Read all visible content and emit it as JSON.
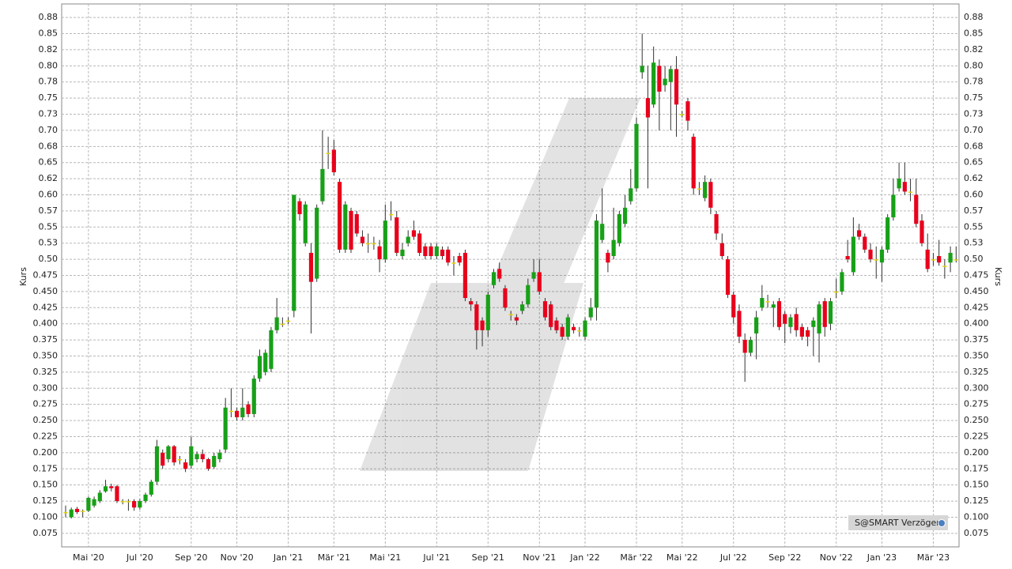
{
  "chart_data": {
    "type": "candlestick",
    "y_label": "Kurs",
    "y2_label": "Kurs",
    "up_color": "#18a018",
    "down_color": "#e8001c",
    "flat_color": "#e8d400",
    "wick_color": "#333333",
    "grid": true,
    "mirror_axis": true,
    "ylim": [
      0.054,
      0.896
    ],
    "yticks": [
      0.075,
      {
        "value": 0.1,
        "label": "0.100"
      },
      0.125,
      {
        "value": 0.15,
        "label": "0.150"
      },
      0.175,
      {
        "value": 0.2,
        "label": "0.200"
      },
      0.225,
      {
        "value": 0.25,
        "label": "0.250"
      },
      0.275,
      {
        "value": 0.3,
        "label": "0.300"
      },
      0.325,
      {
        "value": 0.35,
        "label": "0.350"
      },
      0.375,
      {
        "value": 0.4,
        "label": "0.400"
      },
      0.425,
      {
        "value": 0.45,
        "label": "0.450"
      },
      0.475,
      {
        "value": 0.5,
        "label": "0.50"
      },
      {
        "value": 0.525,
        "label": "0.53"
      },
      0.55,
      {
        "value": 0.575,
        "label": "0.57"
      },
      {
        "value": 0.6,
        "label": "0.60"
      },
      {
        "value": 0.625,
        "label": "0.62"
      },
      0.65,
      {
        "value": 0.675,
        "label": "0.68"
      },
      {
        "value": 0.7,
        "label": "0.70"
      },
      {
        "value": 0.725,
        "label": "0.73"
      },
      0.75,
      {
        "value": 0.775,
        "label": "0.78"
      },
      {
        "value": 0.8,
        "label": "0.80"
      },
      {
        "value": 0.825,
        "label": "0.82"
      },
      0.85,
      {
        "value": 0.875,
        "label": "0.88"
      }
    ],
    "categories": [
      null,
      null,
      null,
      null,
      "Mai '20",
      null,
      null,
      null,
      null,
      null,
      null,
      null,
      null,
      "Jul '20",
      null,
      null,
      null,
      null,
      null,
      null,
      null,
      null,
      "Sep '20",
      null,
      null,
      null,
      null,
      null,
      null,
      null,
      "Nov '20",
      null,
      null,
      null,
      null,
      null,
      null,
      null,
      null,
      "Jan '21",
      null,
      null,
      null,
      null,
      null,
      null,
      null,
      "Mär '21",
      null,
      null,
      null,
      null,
      null,
      null,
      null,
      null,
      "Mai '21",
      null,
      null,
      null,
      null,
      null,
      null,
      null,
      null,
      "Jul '21",
      null,
      null,
      null,
      null,
      null,
      null,
      null,
      null,
      "Sep '21",
      null,
      null,
      null,
      null,
      null,
      null,
      null,
      null,
      "Nov '21",
      null,
      null,
      null,
      null,
      null,
      null,
      null,
      "Jan '22",
      null,
      null,
      null,
      null,
      null,
      null,
      null,
      null,
      "Mär '22",
      null,
      null,
      null,
      null,
      null,
      null,
      null,
      "Mai '22",
      null,
      null,
      null,
      null,
      null,
      null,
      null,
      null,
      "Jul '22",
      null,
      null,
      null,
      null,
      null,
      null,
      null,
      null,
      "Sep '22",
      null,
      null,
      null,
      null,
      null,
      null,
      null,
      null,
      "Nov '22",
      null,
      null,
      null,
      null,
      null,
      null,
      null,
      "Jan '23",
      null,
      null,
      null,
      null,
      null,
      null,
      null,
      null,
      "Mär '23",
      null,
      null,
      null,
      null
    ],
    "open": [
      0.108,
      0.1,
      0.113,
      0.11,
      0.11,
      0.118,
      0.125,
      0.14,
      0.148,
      0.148,
      0.125,
      0.125,
      0.125,
      0.115,
      0.125,
      0.135,
      0.155,
      0.2,
      0.19,
      0.21,
      0.19,
      0.185,
      0.18,
      0.19,
      0.198,
      0.19,
      0.178,
      0.19,
      0.205,
      0.265,
      0.265,
      0.255,
      0.275,
      0.26,
      0.315,
      0.325,
      0.33,
      0.39,
      0.4,
      0.405,
      0.42,
      0.59,
      0.525,
      0.51,
      0.47,
      0.59,
      0.665,
      0.67,
      0.62,
      0.515,
      0.575,
      0.57,
      0.535,
      0.525,
      0.525,
      0.52,
      0.5,
      0.57,
      0.565,
      0.505,
      0.525,
      0.545,
      0.54,
      0.52,
      0.52,
      0.505,
      0.515,
      0.515,
      0.495,
      0.505,
      0.51,
      0.435,
      0.43,
      0.405,
      0.39,
      0.46,
      0.485,
      0.455,
      0.415,
      0.41,
      0.42,
      0.43,
      0.47,
      0.48,
      0.435,
      0.43,
      0.405,
      0.395,
      0.38,
      0.395,
      0.39,
      0.38,
      0.41,
      0.425,
      0.53,
      0.51,
      0.505,
      0.525,
      0.555,
      0.59,
      0.61,
      0.79,
      0.75,
      0.74,
      0.8,
      0.77,
      0.775,
      0.795,
      0.725,
      0.745,
      0.69,
      0.61,
      0.595,
      0.62,
      0.57,
      0.525,
      0.5,
      0.445,
      0.42,
      0.375,
      0.355,
      0.385,
      0.425,
      0.435,
      0.425,
      0.435,
      0.415,
      0.395,
      0.415,
      0.395,
      0.39,
      0.395,
      0.385,
      0.435,
      0.4,
      0.45,
      0.45,
      0.505,
      0.48,
      0.545,
      0.535,
      0.515,
      0.5,
      0.495,
      0.515,
      0.565,
      0.61,
      0.62,
      0.605,
      0.6,
      0.56,
      0.515,
      0.5,
      0.505,
      0.49,
      0.495,
      0.5
    ],
    "high": [
      0.118,
      0.115,
      0.116,
      0.112,
      0.132,
      0.132,
      0.142,
      0.158,
      0.152,
      0.15,
      0.128,
      0.128,
      0.128,
      0.128,
      0.138,
      0.158,
      0.22,
      0.205,
      0.212,
      0.212,
      0.195,
      0.19,
      0.225,
      0.202,
      0.205,
      0.192,
      0.2,
      0.205,
      0.285,
      0.3,
      0.27,
      0.3,
      0.28,
      0.32,
      0.36,
      0.36,
      0.395,
      0.44,
      0.41,
      0.41,
      0.6,
      0.595,
      0.59,
      0.525,
      0.585,
      0.7,
      0.69,
      0.685,
      0.625,
      0.59,
      0.58,
      0.575,
      0.545,
      0.54,
      0.535,
      0.53,
      0.585,
      0.59,
      0.575,
      0.525,
      0.545,
      0.56,
      0.545,
      0.525,
      0.525,
      0.525,
      0.52,
      0.52,
      0.505,
      0.51,
      0.515,
      0.44,
      0.435,
      0.41,
      0.45,
      0.485,
      0.495,
      0.46,
      0.42,
      0.415,
      0.435,
      0.47,
      0.5,
      0.5,
      0.44,
      0.435,
      0.41,
      0.4,
      0.415,
      0.4,
      0.395,
      0.41,
      0.44,
      0.57,
      0.61,
      0.515,
      0.58,
      0.575,
      0.6,
      0.64,
      0.72,
      0.85,
      0.8,
      0.83,
      0.81,
      0.8,
      0.8,
      0.815,
      0.73,
      0.75,
      0.695,
      0.62,
      0.63,
      0.625,
      0.575,
      0.54,
      0.505,
      0.45,
      0.43,
      0.385,
      0.38,
      0.42,
      0.46,
      0.445,
      0.435,
      0.44,
      0.42,
      0.415,
      0.425,
      0.4,
      0.395,
      0.41,
      0.435,
      0.44,
      0.44,
      0.47,
      0.485,
      0.53,
      0.565,
      0.555,
      0.54,
      0.525,
      0.52,
      0.52,
      0.57,
      0.625,
      0.65,
      0.65,
      0.625,
      0.625,
      0.57,
      0.54,
      0.51,
      0.53,
      0.5,
      0.52,
      0.52
    ],
    "low": [
      0.1,
      0.098,
      0.105,
      0.1,
      0.108,
      0.115,
      0.122,
      0.138,
      0.14,
      0.122,
      0.12,
      0.11,
      0.11,
      0.112,
      0.122,
      0.132,
      0.15,
      0.175,
      0.185,
      0.18,
      0.182,
      0.17,
      0.175,
      0.185,
      0.185,
      0.172,
      0.175,
      0.185,
      0.2,
      0.255,
      0.25,
      0.25,
      0.255,
      0.255,
      0.31,
      0.32,
      0.325,
      0.385,
      0.395,
      0.4,
      0.41,
      0.56,
      0.52,
      0.385,
      0.465,
      0.585,
      0.64,
      0.63,
      0.51,
      0.51,
      0.51,
      0.535,
      0.52,
      0.51,
      0.515,
      0.48,
      0.495,
      0.56,
      0.505,
      0.5,
      0.52,
      0.53,
      0.505,
      0.5,
      0.5,
      0.5,
      0.5,
      0.49,
      0.475,
      0.49,
      0.435,
      0.42,
      0.36,
      0.365,
      0.38,
      0.455,
      0.465,
      0.42,
      0.405,
      0.398,
      0.415,
      0.425,
      0.465,
      0.445,
      0.405,
      0.39,
      0.385,
      0.375,
      0.375,
      0.385,
      0.38,
      0.375,
      0.405,
      0.405,
      0.525,
      0.48,
      0.5,
      0.52,
      0.55,
      0.585,
      0.605,
      0.78,
      0.61,
      0.735,
      0.7,
      0.76,
      0.7,
      0.69,
      0.72,
      0.7,
      0.6,
      0.6,
      0.59,
      0.57,
      0.53,
      0.5,
      0.44,
      0.4,
      0.37,
      0.31,
      0.35,
      0.345,
      0.42,
      0.425,
      0.395,
      0.39,
      0.37,
      0.385,
      0.38,
      0.375,
      0.365,
      0.35,
      0.34,
      0.38,
      0.39,
      0.44,
      0.445,
      0.495,
      0.475,
      0.53,
      0.51,
      0.495,
      0.47,
      0.465,
      0.51,
      0.56,
      0.605,
      0.6,
      0.59,
      0.55,
      0.52,
      0.48,
      0.49,
      0.49,
      0.47,
      0.48,
      0.495
    ],
    "close": [
      0.108,
      0.112,
      0.108,
      0.11,
      0.13,
      0.128,
      0.138,
      0.148,
      0.145,
      0.125,
      0.125,
      0.125,
      0.115,
      0.125,
      0.135,
      0.155,
      0.21,
      0.18,
      0.21,
      0.185,
      0.19,
      0.175,
      0.21,
      0.198,
      0.19,
      0.175,
      0.195,
      0.2,
      0.27,
      0.265,
      0.255,
      0.27,
      0.26,
      0.315,
      0.35,
      0.355,
      0.39,
      0.41,
      0.4,
      0.405,
      0.6,
      0.57,
      0.585,
      0.465,
      0.58,
      0.64,
      0.665,
      0.635,
      0.515,
      0.585,
      0.515,
      0.54,
      0.525,
      0.525,
      0.525,
      0.5,
      0.56,
      0.57,
      0.51,
      0.515,
      0.535,
      0.535,
      0.51,
      0.505,
      0.505,
      0.52,
      0.505,
      0.495,
      0.495,
      0.495,
      0.44,
      0.43,
      0.39,
      0.39,
      0.445,
      0.48,
      0.47,
      0.425,
      0.415,
      0.405,
      0.43,
      0.46,
      0.48,
      0.45,
      0.41,
      0.395,
      0.39,
      0.38,
      0.41,
      0.39,
      0.39,
      0.405,
      0.425,
      0.56,
      0.555,
      0.495,
      0.53,
      0.57,
      0.58,
      0.61,
      0.71,
      0.8,
      0.72,
      0.805,
      0.76,
      0.78,
      0.795,
      0.74,
      0.725,
      0.715,
      0.61,
      0.61,
      0.62,
      0.58,
      0.54,
      0.505,
      0.445,
      0.41,
      0.38,
      0.355,
      0.375,
      0.41,
      0.44,
      0.435,
      0.43,
      0.395,
      0.4,
      0.41,
      0.39,
      0.38,
      0.38,
      0.405,
      0.43,
      0.395,
      0.435,
      0.45,
      0.48,
      0.5,
      0.535,
      0.535,
      0.515,
      0.5,
      0.5,
      0.515,
      0.565,
      0.6,
      0.625,
      0.605,
      0.605,
      0.555,
      0.525,
      0.485,
      0.5,
      0.495,
      0.49,
      0.51,
      0.5
    ]
  },
  "badge": "S@SMART Verzögert"
}
